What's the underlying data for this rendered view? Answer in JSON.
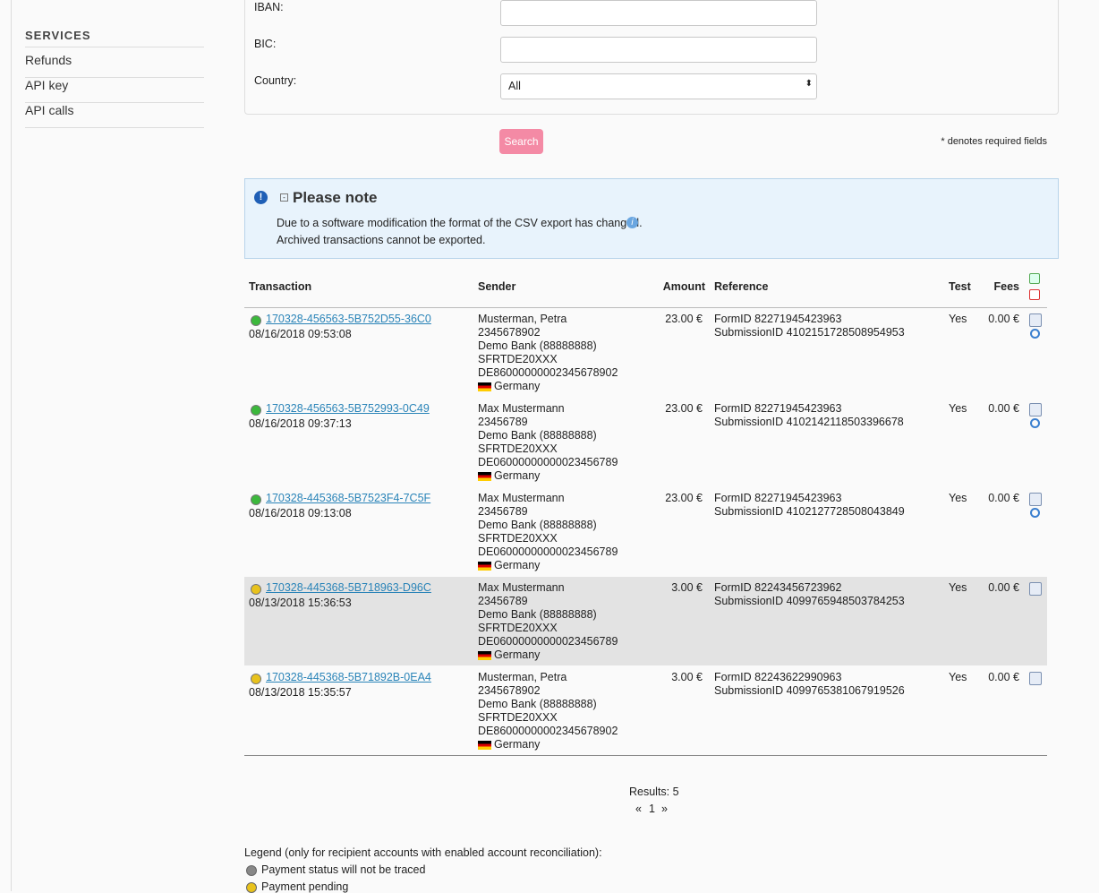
{
  "sidebar": {
    "heading": "SERVICES",
    "links": [
      "Refunds",
      "API key",
      "API calls"
    ]
  },
  "form": {
    "iban_label": "IBAN:",
    "bic_label": "BIC:",
    "country_label": "Country:",
    "country_value": "All",
    "search": "Search",
    "required_note": "* denotes required fields"
  },
  "note": {
    "title": "Please note",
    "lines": [
      "Due to a software modification the format of the CSV export has changed.",
      "Archived transactions cannot be exported."
    ]
  },
  "table": {
    "headers": [
      "Transaction",
      "Sender",
      "Amount",
      "Reference",
      "Test",
      "Fees"
    ],
    "rows": [
      {
        "status": "#3cb83c",
        "id": "170328-456563-5B752D55-36C0",
        "date": "08/16/2018 09:53:08",
        "sender": [
          "Musterman, Petra",
          "2345678902",
          "Demo Bank (88888888)",
          "SFRTDE20XXX",
          "DE86000000002345678902"
        ],
        "country": "Germany",
        "amount": "23.00 €",
        "reference": [
          "FormID 82271945423963",
          "SubmissionID 4102151728508954953"
        ],
        "test": "Yes",
        "fees": "0.00 €",
        "refund": true,
        "highlight": false
      },
      {
        "status": "#3cb83c",
        "id": "170328-456563-5B752993-0C49",
        "date": "08/16/2018 09:37:13",
        "sender": [
          "Max Mustermann",
          "23456789",
          "Demo Bank (88888888)",
          "SFRTDE20XXX",
          "DE06000000000023456789"
        ],
        "country": "Germany",
        "amount": "23.00 €",
        "reference": [
          "FormID 82271945423963",
          "SubmissionID 4102142118503396678"
        ],
        "test": "Yes",
        "fees": "0.00 €",
        "refund": true,
        "highlight": false
      },
      {
        "status": "#3cb83c",
        "id": "170328-445368-5B7523F4-7C5F",
        "date": "08/16/2018 09:13:08",
        "sender": [
          "Max Mustermann",
          "23456789",
          "Demo Bank (88888888)",
          "SFRTDE20XXX",
          "DE06000000000023456789"
        ],
        "country": "Germany",
        "amount": "23.00 €",
        "reference": [
          "FormID 82271945423963",
          "SubmissionID 4102127728508043849"
        ],
        "test": "Yes",
        "fees": "0.00 €",
        "refund": true,
        "highlight": false
      },
      {
        "status": "#e8c21c",
        "id": "170328-445368-5B718963-D96C",
        "date": "08/13/2018 15:36:53",
        "sender": [
          "Max Mustermann",
          "23456789",
          "Demo Bank (88888888)",
          "SFRTDE20XXX",
          "DE06000000000023456789"
        ],
        "country": "Germany",
        "amount": "3.00 €",
        "reference": [
          "FormID 82243456723962",
          "SubmissionID 4099765948503784253"
        ],
        "test": "Yes",
        "fees": "0.00 €",
        "refund": false,
        "highlight": true
      },
      {
        "status": "#e8c21c",
        "id": "170328-445368-5B71892B-0EA4",
        "date": "08/13/2018 15:35:57",
        "sender": [
          "Musterman, Petra",
          "2345678902",
          "Demo Bank (88888888)",
          "SFRTDE20XXX",
          "DE86000000002345678902"
        ],
        "country": "Germany",
        "amount": "3.00 €",
        "reference": [
          "FormID 82243622990963",
          "SubmissionID 4099765381067919526"
        ],
        "test": "Yes",
        "fees": "0.00 €",
        "refund": false,
        "highlight": false
      }
    ]
  },
  "results": "Results: 5",
  "pagination": [
    "«",
    "1",
    "»"
  ],
  "legend": {
    "title": "Legend (only for recipient accounts with enabled account reconciliation):",
    "items": [
      {
        "color": "#888888",
        "text": "Payment status will not be traced"
      },
      {
        "color": "#e8c21c",
        "text": "Payment pending"
      }
    ]
  }
}
